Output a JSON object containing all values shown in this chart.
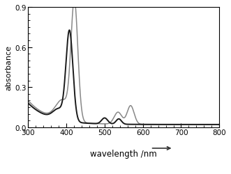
{
  "title": "",
  "xlabel": "wavelength /nm",
  "ylabel": "absorbance",
  "xlim": [
    300,
    800
  ],
  "ylim": [
    0.0,
    0.9
  ],
  "yticks": [
    0.0,
    0.3,
    0.6,
    0.9
  ],
  "xticks": [
    300,
    400,
    500,
    600,
    700,
    800
  ],
  "background_color": "#ffffff",
  "line_black_color": "#1a1a1a",
  "line_grey_color": "#888888",
  "arrow_color": "#333333"
}
